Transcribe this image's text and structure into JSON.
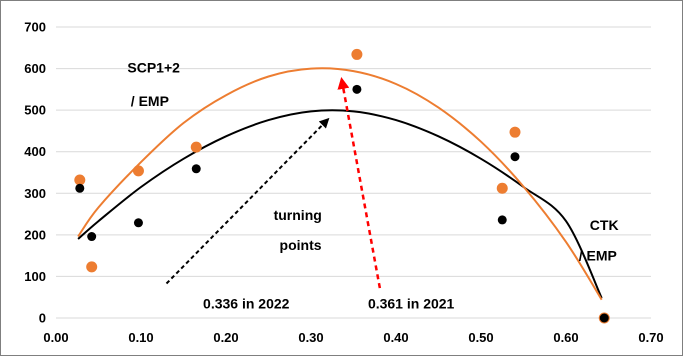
{
  "chart_data": {
    "type": "scatter",
    "title": "",
    "xlabel": "",
    "ylabel": "",
    "xlim": [
      0,
      0.7
    ],
    "ylim": [
      0,
      700
    ],
    "x_ticks": [
      "0.00",
      "0.10",
      "0.20",
      "0.30",
      "0.40",
      "0.50",
      "0.60",
      "0.70"
    ],
    "y_ticks": [
      "0",
      "100",
      "200",
      "300",
      "400",
      "500",
      "600",
      "700"
    ],
    "grid": "horizontal",
    "legend": "none",
    "series": [
      {
        "color": "#000000",
        "points": [
          {
            "x": 0.028,
            "y": 312
          },
          {
            "x": 0.042,
            "y": 196
          },
          {
            "x": 0.097,
            "y": 229
          },
          {
            "x": 0.165,
            "y": 359
          },
          {
            "x": 0.354,
            "y": 550
          },
          {
            "x": 0.525,
            "y": 236
          },
          {
            "x": 0.54,
            "y": 388
          },
          {
            "x": 0.645,
            "y": 0
          }
        ],
        "fit": {
          "x": [
            0.026,
            0.05,
            0.1,
            0.15,
            0.2,
            0.25,
            0.3,
            0.35,
            0.4,
            0.45,
            0.5,
            0.55,
            0.6,
            0.642
          ],
          "y": [
            190,
            233,
            315,
            383,
            437,
            476,
            497,
            497,
            476,
            437,
            383,
            315,
            233,
            48
          ]
        }
      },
      {
        "color": "#ED7D31",
        "points": [
          {
            "x": 0.028,
            "y": 332
          },
          {
            "x": 0.042,
            "y": 123
          },
          {
            "x": 0.097,
            "y": 354
          },
          {
            "x": 0.165,
            "y": 411
          },
          {
            "x": 0.354,
            "y": 634
          },
          {
            "x": 0.525,
            "y": 312
          },
          {
            "x": 0.54,
            "y": 447
          },
          {
            "x": 0.645,
            "y": 0
          }
        ],
        "fit": {
          "x": [
            0.026,
            0.05,
            0.1,
            0.15,
            0.2,
            0.25,
            0.3,
            0.35,
            0.4,
            0.45,
            0.5,
            0.55,
            0.6,
            0.642
          ],
          "y": [
            196,
            266,
            375,
            469,
            536,
            581,
            600,
            594,
            563,
            506,
            424,
            316,
            183,
            44
          ]
        }
      }
    ],
    "annotations": [
      {
        "label": "SCP1+2",
        "x": 0.084,
        "y": 590
      },
      {
        "label": "/ EMP",
        "x": 0.088,
        "y": 510
      },
      {
        "label": "turning",
        "x": 0.256,
        "y": 236
      },
      {
        "label": "points",
        "x": 0.263,
        "y": 163
      },
      {
        "label": "CTK",
        "x": 0.628,
        "y": 212
      },
      {
        "label": "/ EMP",
        "x": 0.615,
        "y": 138
      },
      {
        "label": "0.336 in 2022",
        "x": 0.173,
        "y": 23
      },
      {
        "label": "0.361 in 2021",
        "x": 0.367,
        "y": 23
      }
    ],
    "arrows": [
      {
        "color": "#000000",
        "from": [
          0.13,
          83
        ],
        "to": [
          0.32,
          478
        ]
      },
      {
        "color": "#FF0000",
        "from": [
          0.381,
          72
        ],
        "to": [
          0.336,
          575
        ]
      }
    ]
  }
}
